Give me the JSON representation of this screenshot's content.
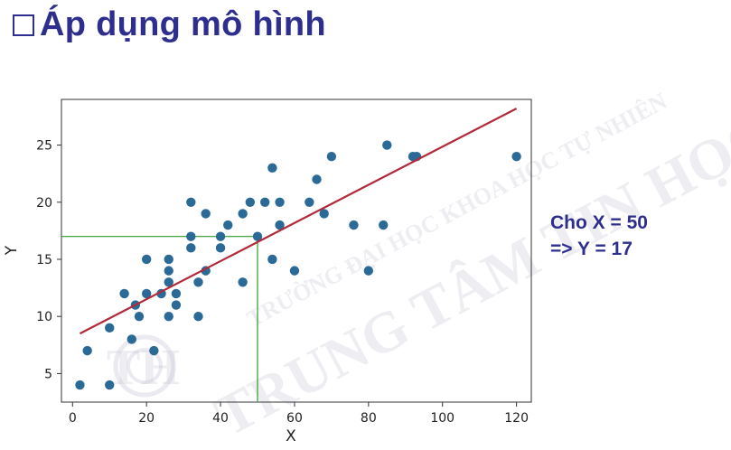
{
  "slide": {
    "title": "Áp dụng mô hình",
    "annotation_line1": "Cho X = 50",
    "annotation_line2": "=> Y = 17"
  },
  "watermark": {
    "line1": "TRƯỜNG ĐẠI HỌC KHOA HỌC TỰ NHIÊN",
    "line2": "TRUNG TÂM TIN HỌC",
    "logo_text": "TH"
  },
  "colors": {
    "title": "#2e2e8e",
    "points": "#2b6a96",
    "regression_line": "#b22a3a",
    "guide_lines": "#2e9b2e"
  },
  "chart_data": {
    "type": "scatter",
    "xlabel": "X",
    "ylabel": "Y",
    "xlim": [
      -3,
      124
    ],
    "ylim": [
      2.5,
      29
    ],
    "xticks": [
      0,
      20,
      40,
      60,
      80,
      100,
      120
    ],
    "yticks": [
      5,
      10,
      15,
      20,
      25
    ],
    "grid": false,
    "points": [
      [
        2,
        4
      ],
      [
        4,
        7
      ],
      [
        10,
        4
      ],
      [
        10,
        9
      ],
      [
        14,
        12
      ],
      [
        16,
        8
      ],
      [
        17,
        11
      ],
      [
        18,
        10
      ],
      [
        20,
        15
      ],
      [
        20,
        12
      ],
      [
        22,
        7
      ],
      [
        24,
        12
      ],
      [
        26,
        15
      ],
      [
        26,
        14
      ],
      [
        26,
        13
      ],
      [
        26,
        10
      ],
      [
        28,
        12
      ],
      [
        28,
        11
      ],
      [
        32,
        20
      ],
      [
        32,
        17
      ],
      [
        32,
        16
      ],
      [
        34,
        13
      ],
      [
        34,
        10
      ],
      [
        36,
        19
      ],
      [
        36,
        14
      ],
      [
        40,
        17
      ],
      [
        40,
        16
      ],
      [
        42,
        18
      ],
      [
        46,
        19
      ],
      [
        46,
        13
      ],
      [
        48,
        20
      ],
      [
        50,
        17
      ],
      [
        52,
        20
      ],
      [
        54,
        23
      ],
      [
        54,
        15
      ],
      [
        56,
        20
      ],
      [
        56,
        18
      ],
      [
        60,
        14
      ],
      [
        64,
        20
      ],
      [
        66,
        22
      ],
      [
        68,
        19
      ],
      [
        70,
        24
      ],
      [
        76,
        18
      ],
      [
        80,
        14
      ],
      [
        84,
        18
      ],
      [
        85,
        25
      ],
      [
        92,
        24
      ],
      [
        93,
        24
      ],
      [
        120,
        24
      ]
    ],
    "regression_line": [
      [
        2,
        8.5
      ],
      [
        120,
        28.2
      ]
    ],
    "guide": {
      "x": 50,
      "y": 17
    }
  }
}
